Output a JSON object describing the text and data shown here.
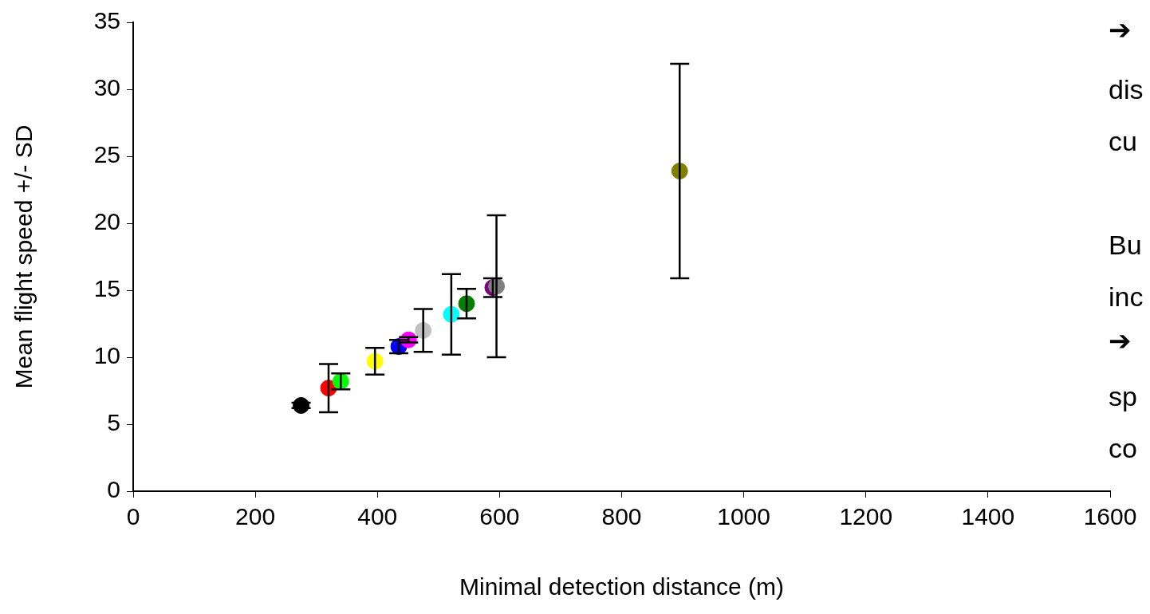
{
  "chart_data": {
    "type": "scatter",
    "xlabel": "Minimal detection distance (m)",
    "ylabel": "Mean flight speed +/- SD",
    "x": [
      275,
      320,
      340,
      396,
      435,
      451,
      475,
      521,
      546,
      589,
      595,
      895
    ],
    "values": [
      6.4,
      7.7,
      8.2,
      9.7,
      10.8,
      11.3,
      12.0,
      13.2,
      14.0,
      15.2,
      15.3,
      23.9
    ],
    "errors": [
      0.2,
      1.8,
      0.6,
      1.0,
      0.5,
      0.2,
      1.6,
      3.0,
      1.1,
      0.7,
      5.3,
      8.0
    ],
    "colors": [
      "#000000",
      "#ff0000",
      "#00ff00",
      "#ffff00",
      "#0000ff",
      "#ff00ff",
      "#c0c0c0",
      "#00ffff",
      "#008000",
      "#800080",
      "#808080",
      "#808000"
    ],
    "xlim": [
      0,
      1600
    ],
    "xticks": [
      0,
      200,
      400,
      600,
      800,
      1000,
      1200,
      1400,
      1600
    ],
    "ylim": [
      0,
      35
    ],
    "yticks": [
      0,
      5,
      10,
      15,
      20,
      25,
      30,
      35
    ],
    "grid": false,
    "legend": false,
    "marker": "circle",
    "annotations": [
      "➔",
      "dis",
      "cu",
      "Bu",
      "inc",
      "➔",
      "sp",
      "co"
    ]
  }
}
